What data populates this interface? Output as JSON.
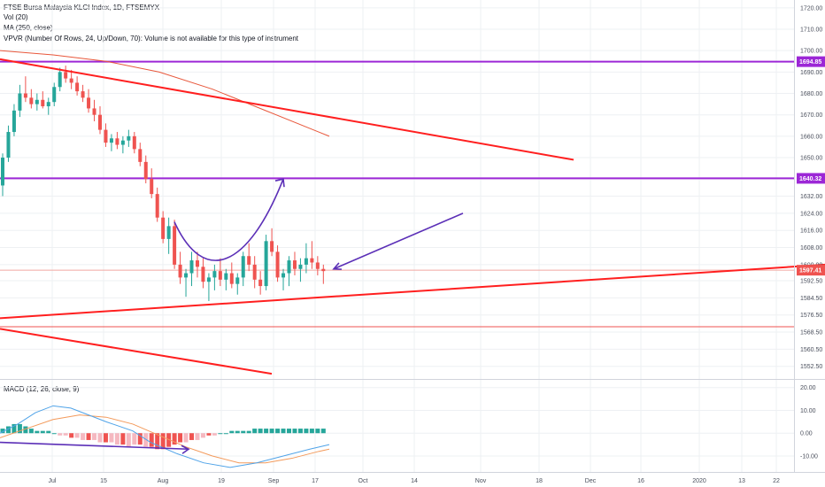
{
  "legend": {
    "title": "FTSE Bursa Malaysia KLCI Index, 1D, FTSEMYX",
    "vol": "Vol (20)",
    "ma": "MA (250, close)",
    "vpvr": "VPVR (Number Of Rows, 24, Up/Down, 70): Volume is not available for this type of instrument",
    "macd": "MACD (12, 26, close, 9)"
  },
  "colors": {
    "up": "#26a69a",
    "down": "#ef5350",
    "trendline": "#ff1f1f",
    "level": "#9c27d6",
    "arrow": "#5b2fb7",
    "ma": "#e8573b",
    "macd_line": "#4fa3e8",
    "signal_line": "#f39a5b",
    "hist_pos": "#26a69a",
    "hist_neg_dark": "#ef5350",
    "hist_neg_light": "#f5b8c0",
    "grid": "#eef0f3"
  },
  "chart_data": {
    "type": "candlestick",
    "y_axis": {
      "range": [
        1547,
        1722
      ],
      "ticks": [
        "1720.00",
        "1710.00",
        "1700.00",
        "1690.00",
        "1680.00",
        "1670.00",
        "1660.00",
        "1650.00",
        "1640.00",
        "1632.00",
        "1624.00",
        "1616.00",
        "1608.00",
        "1600.00",
        "1592.50",
        "1584.50",
        "1576.50",
        "1568.50",
        "1560.50",
        "1552.50"
      ]
    },
    "x_axis": {
      "ticks": [
        "Jul",
        "15",
        "Aug",
        "19",
        "Sep",
        "17",
        "Oct",
        "14",
        "Nov",
        "18",
        "Dec",
        "16",
        "2020",
        "13",
        "22"
      ]
    },
    "price_tags": [
      {
        "label": "1694.85",
        "price": 1694.85,
        "color": "#9c27d6"
      },
      {
        "label": "1640.32",
        "price": 1640.32,
        "color": "#9c27d6"
      },
      {
        "label": "1597.41",
        "price": 1597.41,
        "color": "#ef5350"
      }
    ],
    "candles": [
      [
        1637,
        1652,
        1632,
        1650
      ],
      [
        1650,
        1665,
        1648,
        1662
      ],
      [
        1662,
        1675,
        1660,
        1672
      ],
      [
        1672,
        1684,
        1669,
        1680
      ],
      [
        1680,
        1688,
        1676,
        1678
      ],
      [
        1678,
        1682,
        1673,
        1675
      ],
      [
        1675,
        1680,
        1672,
        1677
      ],
      [
        1677,
        1681,
        1673,
        1674
      ],
      [
        1674,
        1678,
        1670,
        1676
      ],
      [
        1676,
        1685,
        1674,
        1683
      ],
      [
        1683,
        1692,
        1681,
        1690
      ],
      [
        1690,
        1693,
        1685,
        1687
      ],
      [
        1687,
        1691,
        1682,
        1685
      ],
      [
        1685,
        1688,
        1679,
        1681
      ],
      [
        1681,
        1684,
        1676,
        1678
      ],
      [
        1678,
        1682,
        1671,
        1673
      ],
      [
        1673,
        1677,
        1667,
        1670
      ],
      [
        1670,
        1674,
        1661,
        1663
      ],
      [
        1663,
        1666,
        1655,
        1657
      ],
      [
        1657,
        1661,
        1653,
        1659
      ],
      [
        1659,
        1662,
        1654,
        1656
      ],
      [
        1656,
        1660,
        1652,
        1658
      ],
      [
        1658,
        1663,
        1655,
        1660
      ],
      [
        1660,
        1662,
        1652,
        1654
      ],
      [
        1654,
        1657,
        1646,
        1648
      ],
      [
        1648,
        1651,
        1638,
        1640
      ],
      [
        1640,
        1645,
        1631,
        1633
      ],
      [
        1633,
        1636,
        1620,
        1622
      ],
      [
        1622,
        1625,
        1610,
        1612
      ],
      [
        1612,
        1622,
        1605,
        1618
      ],
      [
        1618,
        1621,
        1598,
        1600
      ],
      [
        1600,
        1606,
        1591,
        1594
      ],
      [
        1594,
        1598,
        1585,
        1596
      ],
      [
        1596,
        1606,
        1590,
        1602
      ],
      [
        1602,
        1606,
        1594,
        1599
      ],
      [
        1599,
        1603,
        1589,
        1592
      ],
      [
        1592,
        1596,
        1583,
        1594
      ],
      [
        1594,
        1600,
        1588,
        1597
      ],
      [
        1597,
        1603,
        1590,
        1593
      ],
      [
        1593,
        1598,
        1588,
        1596
      ],
      [
        1596,
        1601,
        1589,
        1591
      ],
      [
        1591,
        1596,
        1586,
        1594
      ],
      [
        1594,
        1606,
        1590,
        1604
      ],
      [
        1604,
        1610,
        1597,
        1600
      ],
      [
        1600,
        1604,
        1589,
        1593
      ],
      [
        1593,
        1597,
        1586,
        1590
      ],
      [
        1590,
        1614,
        1588,
        1611
      ],
      [
        1611,
        1617,
        1604,
        1606
      ],
      [
        1606,
        1609,
        1592,
        1594
      ],
      [
        1594,
        1598,
        1588,
        1596
      ],
      [
        1596,
        1604,
        1590,
        1602
      ],
      [
        1602,
        1606,
        1595,
        1598
      ],
      [
        1598,
        1603,
        1592,
        1600
      ],
      [
        1600,
        1610,
        1596,
        1603
      ],
      [
        1603,
        1611,
        1598,
        1601
      ],
      [
        1601,
        1604,
        1595,
        1598
      ],
      [
        1598,
        1600,
        1591,
        1597
      ]
    ],
    "moving_average": [
      [
        0,
        1700
      ],
      [
        60,
        1698
      ],
      [
        120,
        1695
      ],
      [
        180,
        1690
      ],
      [
        240,
        1682
      ],
      [
        300,
        1672
      ],
      [
        360,
        1662
      ],
      [
        372,
        1660
      ]
    ],
    "trendlines": [
      {
        "from": [
          0,
          1696
        ],
        "to": [
          648,
          1649
        ],
        "color": "#ff1f1f"
      },
      {
        "from": [
          0,
          1575
        ],
        "to": [
          932,
          1600
        ],
        "color": "#ff1f1f"
      },
      {
        "from": [
          0,
          1570
        ],
        "to": [
          307,
          1549
        ],
        "color": "#ff1f1f"
      }
    ],
    "horizontal_levels": [
      {
        "price": 1694.85,
        "color": "#9c27d6"
      },
      {
        "price": 1640.32,
        "color": "#9c27d6"
      },
      {
        "price": 1597.41,
        "color": "#f0a8a0"
      },
      {
        "price": 1571,
        "color": "#ef5350"
      }
    ],
    "annotations": [
      {
        "kind": "curve_arrow",
        "points": [
          [
            197,
            1620
          ],
          [
            230,
            1590
          ],
          [
            280,
            1598
          ],
          [
            320,
            1640
          ]
        ]
      },
      {
        "kind": "arrow",
        "from": [
          523,
          1624
        ],
        "to": [
          377,
          1598
        ]
      }
    ],
    "macd": {
      "y_axis": {
        "range": [
          -17,
          23
        ],
        "ticks": [
          "20.00",
          "10.00",
          "0.00",
          "-10.00"
        ]
      },
      "macd_line": [
        [
          0,
          0
        ],
        [
          20,
          4
        ],
        [
          40,
          9
        ],
        [
          60,
          12
        ],
        [
          80,
          11
        ],
        [
          100,
          8
        ],
        [
          120,
          5
        ],
        [
          150,
          1
        ],
        [
          170,
          -4
        ],
        [
          200,
          -9
        ],
        [
          230,
          -13
        ],
        [
          260,
          -15
        ],
        [
          290,
          -13
        ],
        [
          320,
          -10
        ],
        [
          350,
          -7
        ],
        [
          372,
          -5
        ]
      ],
      "signal_line": [
        [
          0,
          -2
        ],
        [
          30,
          2
        ],
        [
          60,
          6
        ],
        [
          90,
          8
        ],
        [
          120,
          7
        ],
        [
          150,
          4
        ],
        [
          180,
          -1
        ],
        [
          210,
          -6
        ],
        [
          240,
          -10
        ],
        [
          270,
          -13
        ],
        [
          300,
          -13
        ],
        [
          330,
          -11
        ],
        [
          360,
          -8
        ],
        [
          372,
          -7
        ]
      ],
      "histogram": [
        2,
        3,
        4,
        4,
        3,
        2,
        1,
        1,
        1,
        0,
        -1,
        -1,
        -2,
        -2,
        -3,
        -3,
        -3,
        -4,
        -4,
        -4,
        -5,
        -5,
        -6,
        -5,
        -5,
        -6,
        -6,
        -7,
        -7,
        -6,
        -5,
        -4,
        -4,
        -3,
        -3,
        -2,
        -1,
        -1,
        0,
        0,
        1,
        1,
        1,
        1,
        2,
        2,
        2,
        2,
        2,
        2,
        2,
        2,
        2,
        2,
        2,
        2,
        2
      ],
      "divergence_arrow": {
        "from": [
          0,
          -4
        ],
        "to": [
          213,
          -7
        ]
      }
    }
  }
}
